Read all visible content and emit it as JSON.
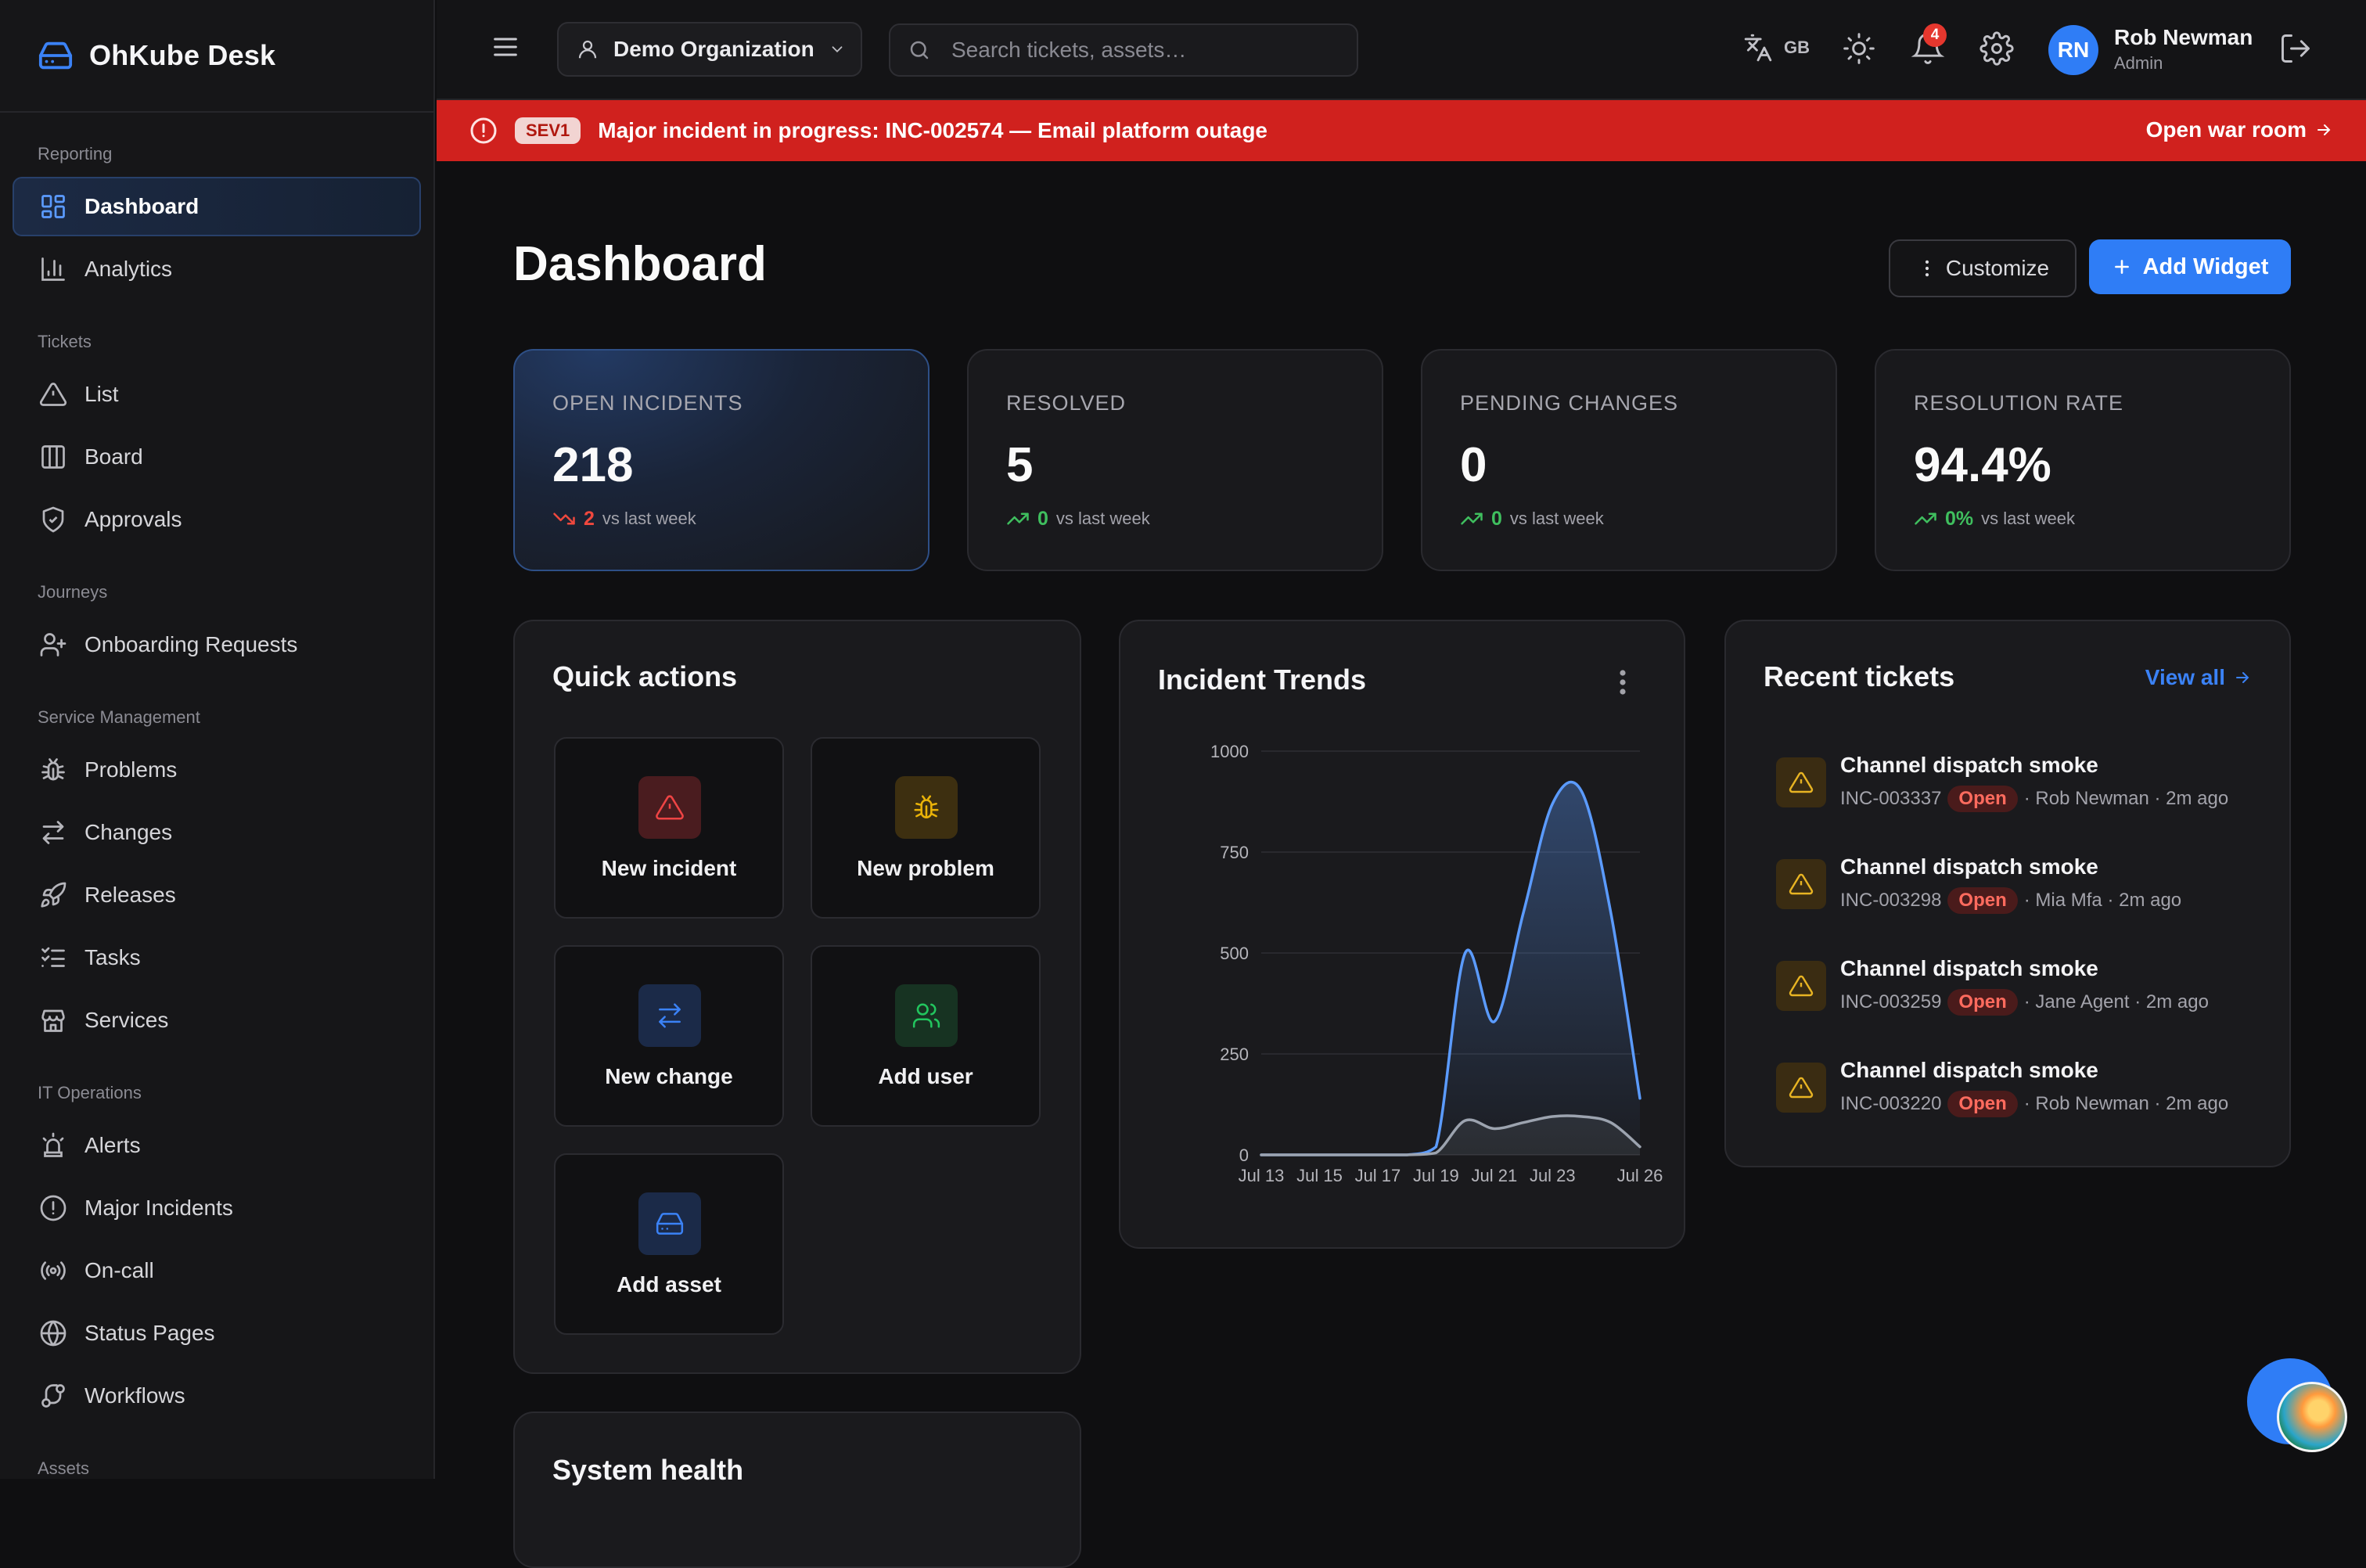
{
  "brand": {
    "name": "OhKube Desk"
  },
  "sidebar": {
    "sections": [
      {
        "title": "Reporting",
        "items": [
          {
            "label": "Dashboard",
            "icon": "grid-icon"
          },
          {
            "label": "Analytics",
            "icon": "bar-chart-icon"
          }
        ]
      },
      {
        "title": "Tickets",
        "items": [
          {
            "label": "List",
            "icon": "warning-icon"
          },
          {
            "label": "Board",
            "icon": "board-icon"
          },
          {
            "label": "Approvals",
            "icon": "shield-check-icon"
          }
        ]
      },
      {
        "title": "Journeys",
        "items": [
          {
            "label": "Onboarding Requests",
            "icon": "user-plus-icon"
          }
        ]
      },
      {
        "title": "Service Management",
        "items": [
          {
            "label": "Problems",
            "icon": "bug-icon"
          },
          {
            "label": "Changes",
            "icon": "swap-icon"
          },
          {
            "label": "Releases",
            "icon": "rocket-icon"
          },
          {
            "label": "Tasks",
            "icon": "list-checks-icon"
          },
          {
            "label": "Services",
            "icon": "store-icon"
          }
        ]
      },
      {
        "title": "IT Operations",
        "items": [
          {
            "label": "Alerts",
            "icon": "siren-icon"
          },
          {
            "label": "Major Incidents",
            "icon": "alert-circle-icon"
          },
          {
            "label": "On-call",
            "icon": "radio-icon"
          },
          {
            "label": "Status Pages",
            "icon": "globe-icon"
          },
          {
            "label": "Workflows",
            "icon": "workflow-icon"
          }
        ]
      },
      {
        "title": "Assets",
        "items": []
      }
    ]
  },
  "topbar": {
    "org": "Demo Organization",
    "search_placeholder": "Search tickets, assets…",
    "lang": "GB",
    "notifications": "4",
    "user": {
      "initials": "RN",
      "name": "Rob Newman",
      "role": "Admin"
    }
  },
  "banner": {
    "sev": "SEV1",
    "message": "Major incident in progress: INC-002574 — Email platform outage",
    "action": "Open war room",
    "color": "#d0211e"
  },
  "page": {
    "title": "Dashboard",
    "customize": "Customize",
    "add_widget": "Add Widget"
  },
  "stats": [
    {
      "label": "OPEN INCIDENTS",
      "value": "218",
      "delta": "2",
      "delta_dir": "down",
      "suffix": "vs last week"
    },
    {
      "label": "RESOLVED",
      "value": "5",
      "delta": "0",
      "delta_dir": "up",
      "suffix": "vs last week"
    },
    {
      "label": "PENDING CHANGES",
      "value": "0",
      "delta": "0",
      "delta_dir": "up",
      "suffix": "vs last week"
    },
    {
      "label": "RESOLUTION RATE",
      "value": "94.4%",
      "delta": "0%",
      "delta_dir": "up",
      "suffix": "vs last week"
    }
  ],
  "quick_actions": {
    "title": "Quick actions",
    "items": [
      {
        "label": "New incident",
        "icon": "warning-icon",
        "color": "#ef4444"
      },
      {
        "label": "New problem",
        "icon": "bug-icon",
        "color": "#eab308"
      },
      {
        "label": "New change",
        "icon": "swap-icon",
        "color": "#3b82f6"
      },
      {
        "label": "Add user",
        "icon": "users-icon",
        "color": "#22c55e"
      },
      {
        "label": "Add asset",
        "icon": "hard-drive-icon",
        "color": "#3b82f6"
      }
    ]
  },
  "system_health": {
    "title": "System health"
  },
  "trends": {
    "title": "Incident Trends"
  },
  "chart_data": {
    "type": "area",
    "title": "Incident Trends",
    "x": [
      "Jul 13",
      "Jul 14",
      "Jul 15",
      "Jul 16",
      "Jul 17",
      "Jul 18",
      "Jul 19",
      "Jul 20",
      "Jul 21",
      "Jul 22",
      "Jul 23",
      "Jul 24",
      "Jul 25",
      "Jul 26"
    ],
    "x_ticks": [
      "Jul 13",
      "Jul 15",
      "Jul 17",
      "Jul 19",
      "Jul 21",
      "Jul 23",
      "Jul 26"
    ],
    "y_ticks": [
      0,
      250,
      500,
      750,
      1000
    ],
    "ylim": [
      0,
      1000
    ],
    "grid": true,
    "series": [
      {
        "values": [
          0,
          0,
          0,
          0,
          0,
          0,
          20,
          500,
          330,
          600,
          870,
          900,
          600,
          140
        ],
        "color": "#5b9bff"
      },
      {
        "values": [
          0,
          0,
          0,
          0,
          0,
          0,
          5,
          85,
          65,
          80,
          95,
          95,
          80,
          20
        ],
        "color": "#9ca3af"
      }
    ]
  },
  "recent": {
    "title": "Recent tickets",
    "view_all": "View all",
    "tickets": [
      {
        "title": "Channel dispatch smoke",
        "id": "INC-003337",
        "status": "Open",
        "who": "· Rob Newman · 2m ago"
      },
      {
        "title": "Channel dispatch smoke",
        "id": "INC-003298",
        "status": "Open",
        "who": "· Mia Mfa · 2m ago"
      },
      {
        "title": "Channel dispatch smoke",
        "id": "INC-003259",
        "status": "Open",
        "who": "· Jane Agent · 2m ago"
      },
      {
        "title": "Channel dispatch smoke",
        "id": "INC-003220",
        "status": "Open",
        "who": "· Rob Newman · 2m ago"
      }
    ]
  }
}
